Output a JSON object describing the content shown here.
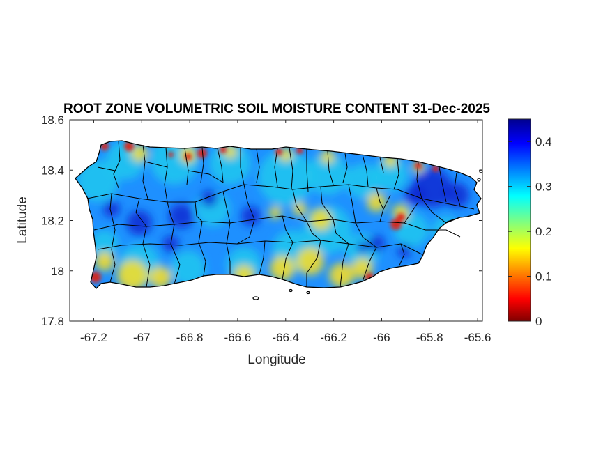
{
  "map": {
    "title": "ROOT ZONE VOLUMETRIC SOIL MOISTURE CONTENT 31-Dec-2025",
    "xlabel": "Longitude",
    "ylabel": "Latitude",
    "region": "Puerto Rico",
    "xlim": [
      -67.3,
      -65.58
    ],
    "ylim": [
      17.8,
      18.6
    ],
    "xticks": [
      -67.2,
      -67,
      -66.8,
      -66.6,
      -66.4,
      -66.2,
      -66,
      -65.8,
      -65.6
    ],
    "xtick_labels": [
      "-67.2",
      "-67",
      "-66.8",
      "-66.6",
      "-66.4",
      "-66.2",
      "-66",
      "-65.8",
      "-65.6"
    ],
    "yticks": [
      17.8,
      18,
      18.2,
      18.4,
      18.6
    ],
    "ytick_labels": [
      "17.8",
      "18",
      "18.2",
      "18.4",
      "18.6"
    ],
    "colorbar": {
      "range": [
        0,
        0.45
      ],
      "ticks": [
        0,
        0.1,
        0.2,
        0.3,
        0.4
      ],
      "tick_labels": [
        "0",
        "0.1",
        "0.2",
        "0.3",
        "0.4"
      ],
      "colormap": "jet"
    },
    "field_colors": {
      "dominant": "#1e90ff",
      "wet": "#0a28d2",
      "moderate": "#22c8ee",
      "dry": "#ffe020",
      "very_dry": "#e02010",
      "outline": "#000000"
    }
  }
}
